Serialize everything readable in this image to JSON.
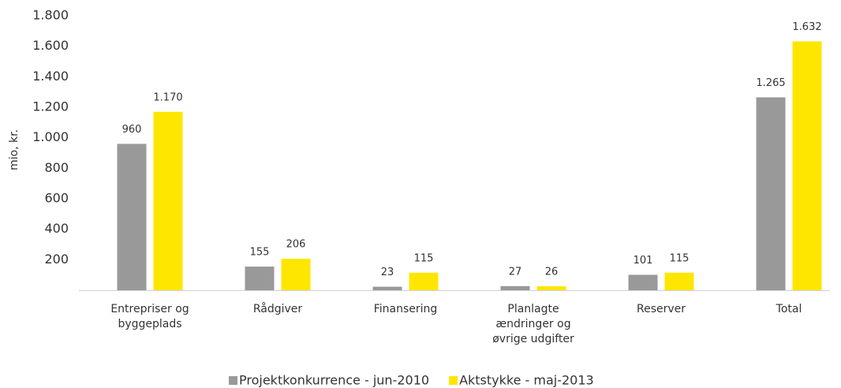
{
  "chart_data": {
    "type": "bar",
    "y_label": "mio, kr.",
    "categories": [
      "Entrepriser og byggeplads",
      "Rådgiver",
      "Finansering",
      "Planlagte ændringer og øvrige udgifter",
      "Reserver",
      "Total"
    ],
    "series": [
      {
        "name": "Projektkonkurrence - jun-2010",
        "color": "#999999",
        "values": [
          960,
          155,
          23,
          27,
          101,
          1265
        ],
        "value_labels": [
          "960",
          "155",
          "23",
          "27",
          "101",
          "1.265"
        ]
      },
      {
        "name": "Aktstykke - maj-2013",
        "color": "#ffe600",
        "values": [
          1170,
          206,
          115,
          26,
          115,
          1632
        ],
        "value_labels": [
          "1.170",
          "206",
          "115",
          "26",
          "115",
          "1.632"
        ]
      }
    ],
    "ylim": [
      0,
      1800
    ],
    "yticks": [
      200,
      400,
      600,
      800,
      {
        "value": 1000,
        "label": "1.000"
      },
      {
        "value": 1200,
        "label": "1.200"
      },
      {
        "value": 1400,
        "label": "1.400"
      },
      {
        "value": 1600,
        "label": "1.600"
      },
      {
        "value": 1800,
        "label": "1.800"
      }
    ],
    "legend": "bottom"
  }
}
